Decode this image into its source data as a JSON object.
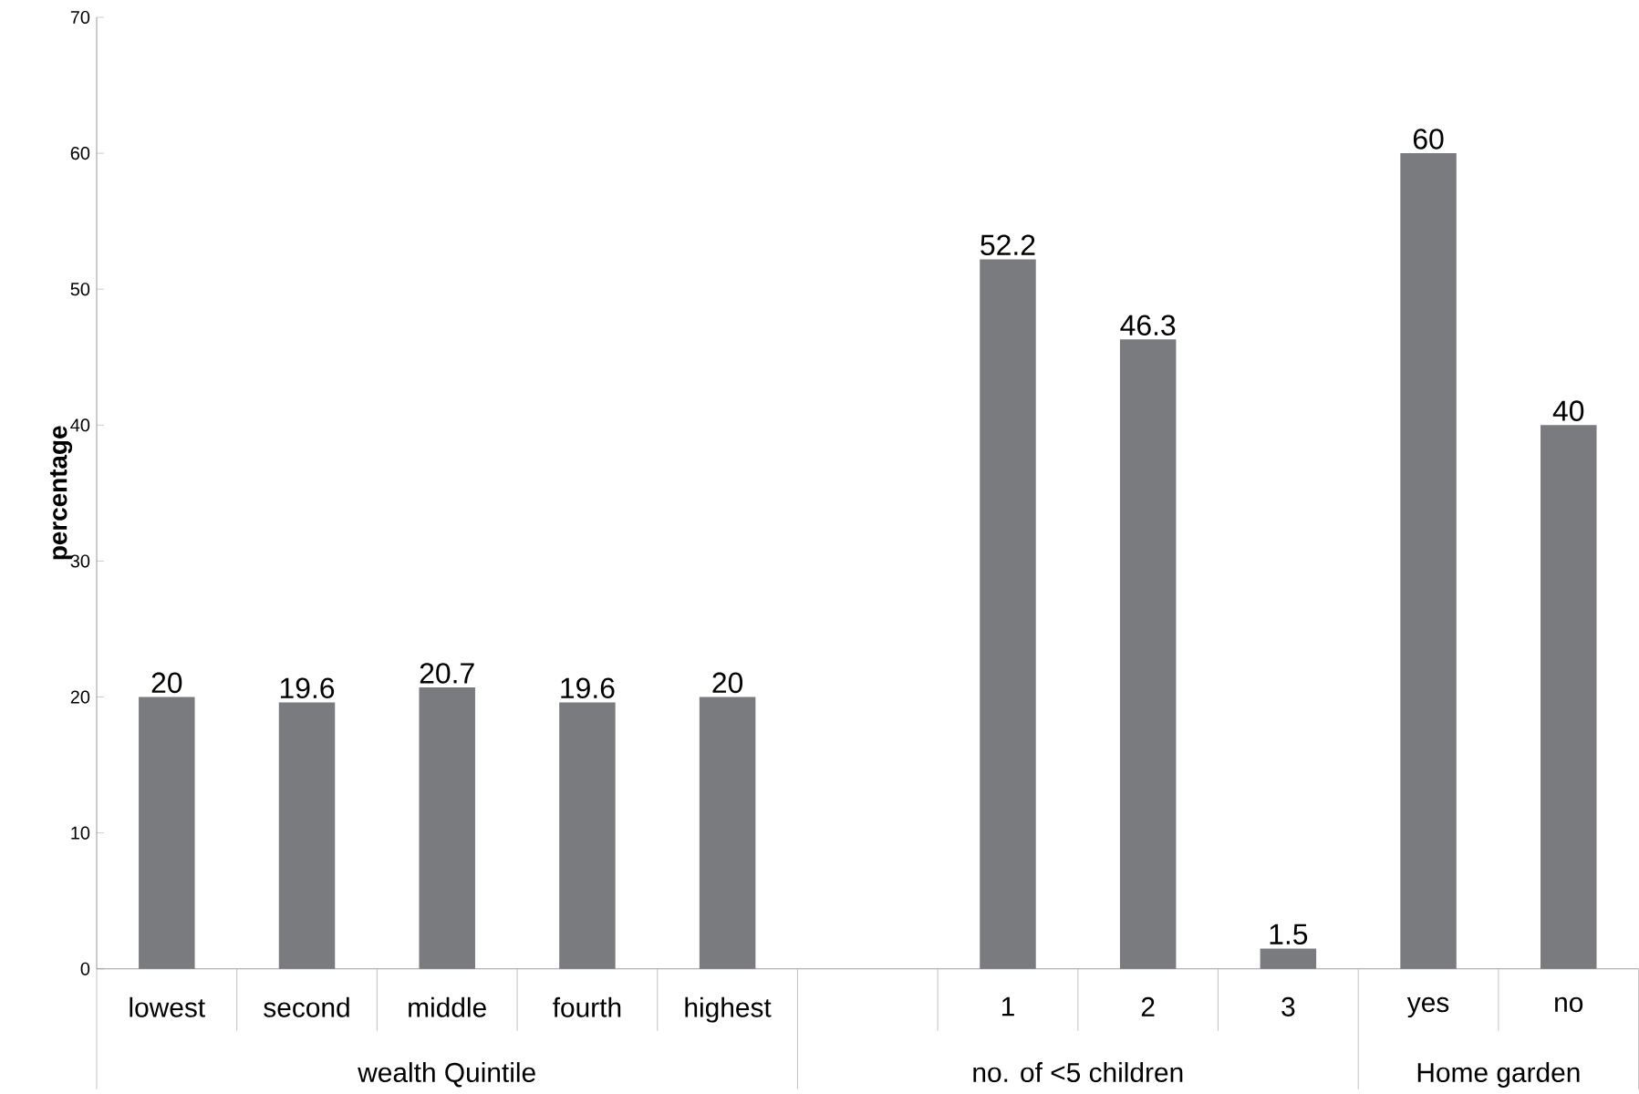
{
  "chart_data": {
    "type": "bar",
    "ylabel": "percentage",
    "categories": [
      "lowest",
      "second",
      "middle",
      "fourth",
      "highest",
      null,
      "1",
      "2",
      "3",
      "yes",
      "no"
    ],
    "values": [
      20,
      19.6,
      20.7,
      19.6,
      20,
      null,
      52.2,
      46.3,
      1.5,
      60,
      40
    ],
    "color": "#7a7b7f",
    "ylim": [
      0,
      70
    ],
    "yticks": [
      0,
      10,
      20,
      30,
      40,
      50,
      60,
      70
    ],
    "data_labels": true,
    "grid": false,
    "annotations": [
      "wealth Quintile",
      "no. of <5 children",
      "Home garden"
    ]
  }
}
